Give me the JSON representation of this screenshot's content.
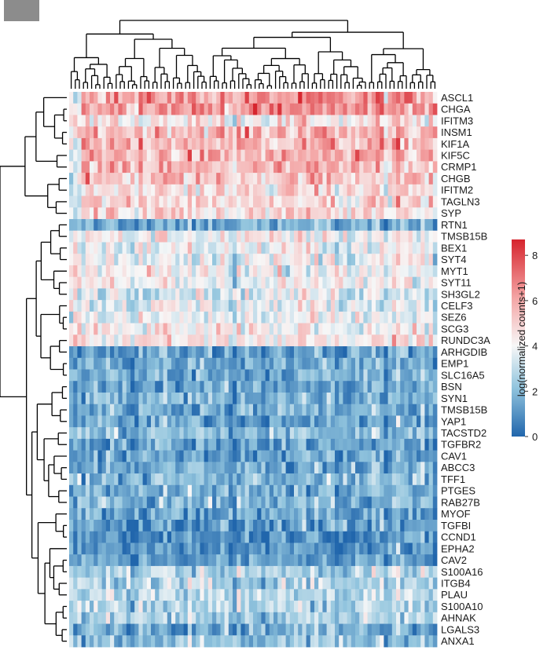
{
  "chart_data": {
    "type": "heatmap",
    "genes": [
      "ASCL1",
      "CHGA",
      "IFITM3",
      "INSM1",
      "KIF1A",
      "KIF5C",
      "CRMP1",
      "CHGB",
      "IFITM2",
      "TAGLN3",
      "SYP",
      "RTN1",
      "TMSB15B",
      "BEX1",
      "SYT4",
      "MYT1",
      "SYT11",
      "SH3GL2",
      "CELF3",
      "SEZ6",
      "SCG3",
      "RUNDC3A",
      "ARHGDIB",
      "EMP1",
      "SLC16A5",
      "BSN",
      "SYN1",
      "TMSB15B",
      "YAP1",
      "TACSTD2",
      "TGFBR2",
      "CAV1",
      "ABCC3",
      "TFF1",
      "PTGES",
      "RAB27B",
      "MYOF",
      "TGFBI",
      "CCND1",
      "EPHA2",
      "CAV2",
      "S100A16",
      "ITGB4",
      "PLAU",
      "S100A10",
      "AHNAK",
      "LGALS3",
      "ANXA1"
    ],
    "n_samples": 90,
    "row_mean_values": [
      6.2,
      6.4,
      4.4,
      5.7,
      5.6,
      5.5,
      5.4,
      5.3,
      4.6,
      4.9,
      4.8,
      1.6,
      4.0,
      3.8,
      3.9,
      4.0,
      3.9,
      3.7,
      3.7,
      3.6,
      4.1,
      4.3,
      1.4,
      1.5,
      1.6,
      1.4,
      1.8,
      1.6,
      1.4,
      2.0,
      1.4,
      1.3,
      1.6,
      1.9,
      1.6,
      1.8,
      1.4,
      1.1,
      1.0,
      1.1,
      1.2,
      2.7,
      2.7,
      3.0,
      2.8,
      2.5,
      1.8,
      2.2
    ],
    "colorbar": {
      "label": "log(normalized counts+1)",
      "range": [
        0,
        8.7
      ],
      "ticks": [
        "0",
        "2",
        "4",
        "6",
        "8"
      ],
      "tick_values": [
        0,
        2,
        4,
        6,
        8
      ],
      "colors": {
        "low": "#2166ac",
        "mid": "#f7f7f7",
        "high": "#d6242d"
      }
    },
    "dendrograms": {
      "rows": true,
      "columns": true
    }
  }
}
